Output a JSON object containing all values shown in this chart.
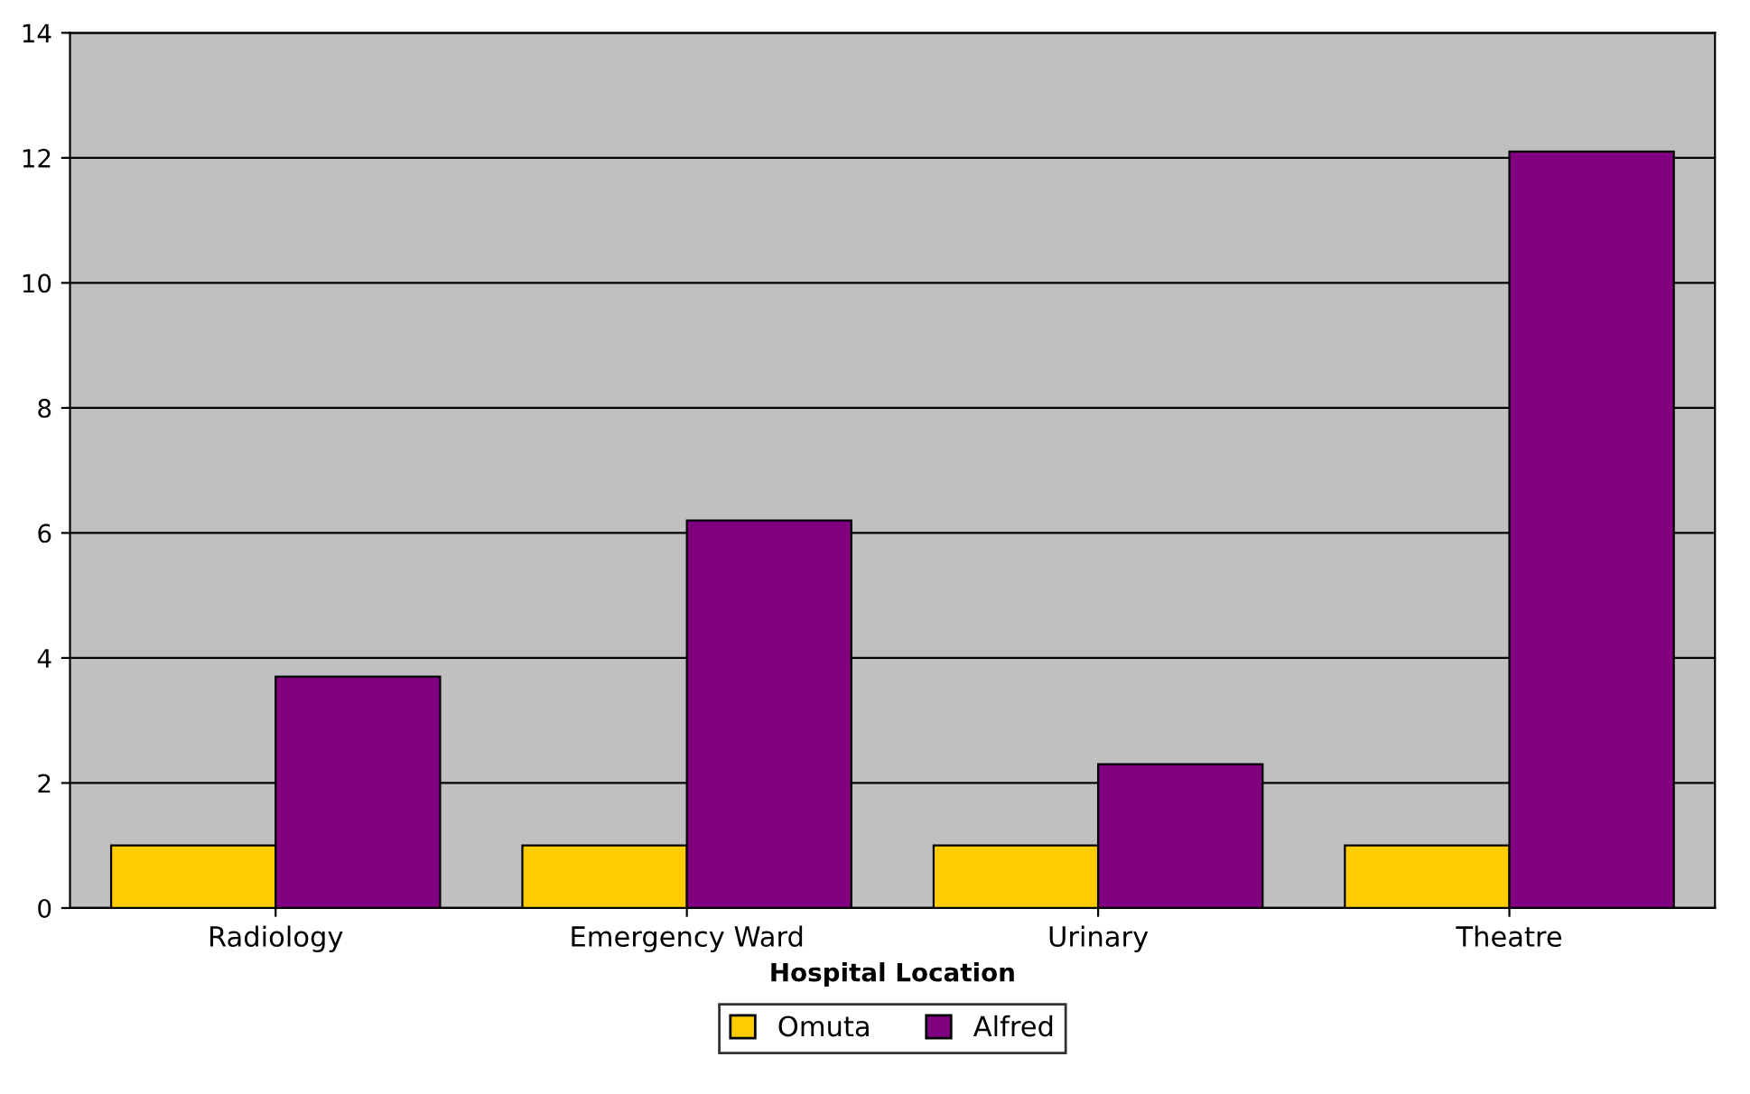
{
  "chart_data": {
    "type": "bar",
    "xlabel": "Hospital Location",
    "categories": [
      "Radiology",
      "Emergency Ward",
      "Urinary",
      "Theatre"
    ],
    "series": [
      {
        "name": "Omuta",
        "color": "#ffcc00",
        "values": [
          1,
          1,
          1,
          1
        ]
      },
      {
        "name": "Alfred",
        "color": "#800080",
        "values": [
          3.7,
          6.2,
          2.3,
          12.1
        ]
      }
    ],
    "ylim": [
      0,
      14
    ],
    "yticks": [
      0,
      2,
      4,
      6,
      8,
      10,
      12,
      14
    ],
    "grid": "y",
    "legend": "bottom"
  }
}
